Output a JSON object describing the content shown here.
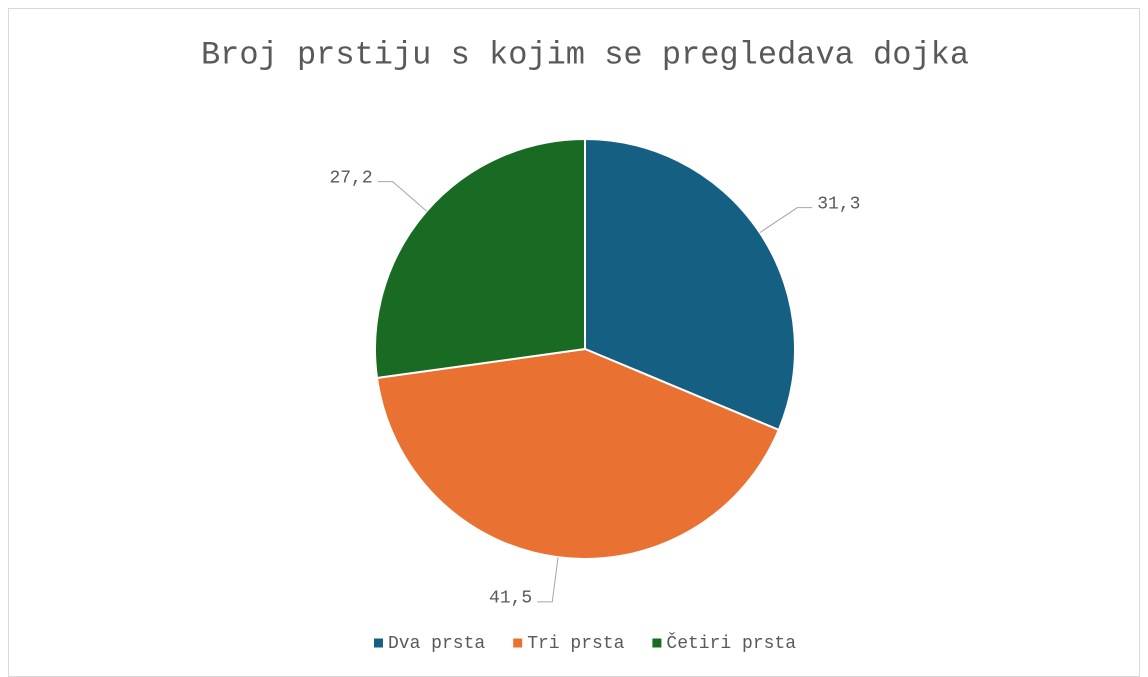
{
  "chart_data": {
    "type": "pie",
    "title": "Broj prstiju s kojim se pregledava dojka",
    "categories": [
      "Dva prsta",
      "Tri prsta",
      "Četiri prsta"
    ],
    "values": [
      31.3,
      41.5,
      27.2
    ],
    "value_labels": [
      "31,3",
      "41,5",
      "27,2"
    ],
    "colors": [
      "#156082",
      "#E97132",
      "#196B24"
    ],
    "legend": "bottom"
  }
}
